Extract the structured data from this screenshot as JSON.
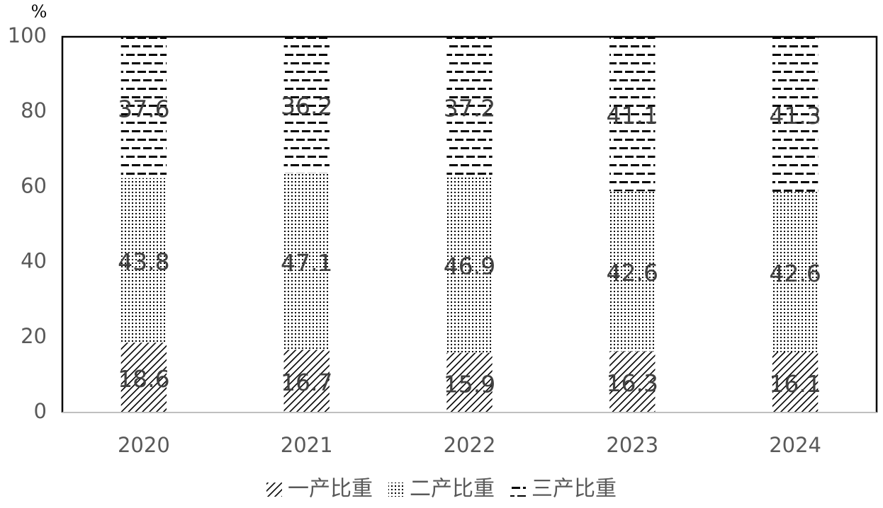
{
  "chart_data": {
    "type": "stacked_bar",
    "y_label": "%",
    "categories": [
      "2020",
      "2021",
      "2022",
      "2023",
      "2024"
    ],
    "series": [
      {
        "name": "一产比重",
        "color": "#000000",
        "pattern": "diagonal",
        "values": [
          18.6,
          16.7,
          15.9,
          16.3,
          16.1
        ]
      },
      {
        "name": "二产比重",
        "color": "#000000",
        "pattern": "dots",
        "values": [
          43.8,
          47.1,
          46.9,
          42.6,
          42.6
        ]
      },
      {
        "name": "三产比重",
        "color": "#000000",
        "pattern": "dashes",
        "values": [
          37.6,
          36.2,
          37.2,
          41.1,
          41.3
        ]
      }
    ],
    "ylim": [
      0,
      100
    ],
    "yticks": [
      0,
      20,
      40,
      60,
      80,
      100
    ],
    "grid": false,
    "legend": "bottom"
  }
}
